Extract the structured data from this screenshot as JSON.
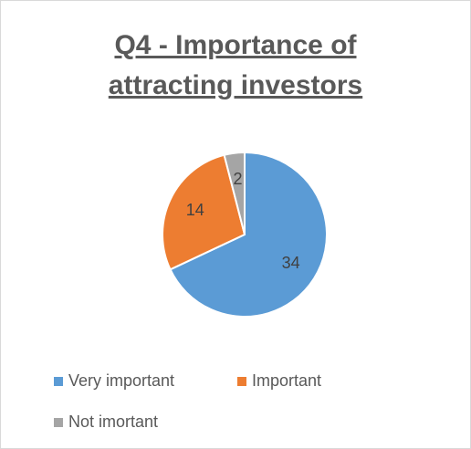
{
  "chart_data": {
    "type": "pie",
    "title": "Q4 - Importance of attracting investors",
    "categories": [
      "Very important",
      "Important",
      "Not imortant"
    ],
    "values": [
      34,
      14,
      2
    ],
    "colors": [
      "#5b9bd5",
      "#ed7d31",
      "#a5a5a5"
    ],
    "legend": "bottom"
  }
}
